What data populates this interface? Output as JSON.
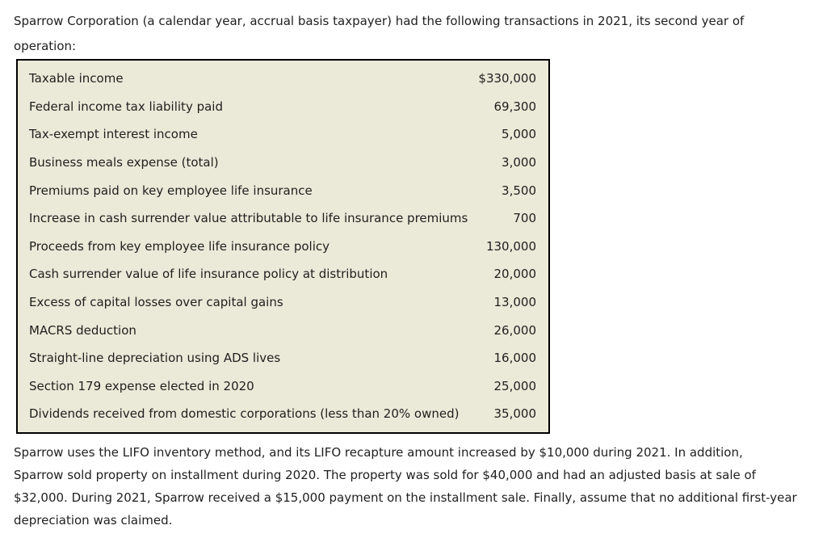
{
  "page": {
    "intro_lines": [
      "Sparrow Corporation (a calendar year, accrual basis taxpayer) had the following transactions in 2021, its second year of",
      "operation:"
    ],
    "outro_lines": [
      "Sparrow uses the LIFO inventory method, and its LIFO recapture amount increased by $10,000 during 2021. In addition,",
      "Sparrow sold property on installment during 2020. The property was sold for $40,000 and had an adjusted basis at sale of",
      "$32,000. During 2021, Sparrow received a $15,000 payment on the installment sale. Finally, assume that no additional first-year",
      "depreciation was claimed."
    ]
  },
  "table": {
    "colors": {
      "background": "#ebe9d8",
      "border": "#000000",
      "text": "#1f1f1f"
    },
    "rows": [
      {
        "label": "Taxable income",
        "value": "$330,000"
      },
      {
        "label": "Federal income tax liability paid",
        "value": "69,300"
      },
      {
        "label": "Tax-exempt interest income",
        "value": "5,000"
      },
      {
        "label": "Business meals expense (total)",
        "value": "3,000"
      },
      {
        "label": "Premiums paid on key employee life insurance",
        "value": "3,500"
      },
      {
        "label": "Increase in cash surrender value attributable to life insurance premiums",
        "value": "700"
      },
      {
        "label": "Proceeds from key employee life insurance policy",
        "value": "130,000"
      },
      {
        "label": "Cash surrender value of life insurance policy at distribution",
        "value": "20,000"
      },
      {
        "label": "Excess of capital losses over capital gains",
        "value": "13,000"
      },
      {
        "label": "MACRS deduction",
        "value": "26,000"
      },
      {
        "label": "Straight-line depreciation using ADS lives",
        "value": "16,000"
      },
      {
        "label": "Section 179 expense elected in 2020",
        "value": "25,000"
      },
      {
        "label": "Dividends received from domestic corporations (less than 20% owned)",
        "value": "35,000"
      }
    ]
  }
}
